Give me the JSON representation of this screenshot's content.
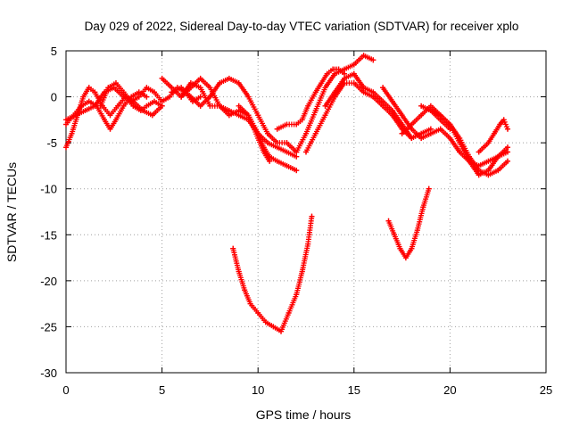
{
  "chart_data": {
    "type": "scatter",
    "title": "Day 029 of 2022, Sidereal Day-to-day VTEC variation (SDTVAR) for receiver xplo",
    "xlabel": "GPS time / hours",
    "ylabel": "SDTVAR / TECUs",
    "xlim": [
      0,
      25
    ],
    "ylim": [
      -30,
      5
    ],
    "xticks": [
      0,
      5,
      10,
      15,
      20,
      25
    ],
    "yticks": [
      5,
      0,
      -5,
      -10,
      -15,
      -20,
      -25,
      -30
    ],
    "grid": true,
    "marker": "+",
    "color": "#ff0000",
    "series": [
      {
        "name": "track-1",
        "x": [
          0.0,
          0.4,
          0.8,
          1.2,
          1.6,
          2.0,
          2.3,
          2.6,
          3.0,
          3.4,
          3.8,
          4.2
        ],
        "y": [
          -3.0,
          -2.0,
          -1.0,
          -0.5,
          -1.0,
          -2.5,
          -3.5,
          -2.5,
          -1.0,
          0.0,
          0.5,
          0.0
        ]
      },
      {
        "name": "track-2",
        "x": [
          0.0,
          0.3,
          0.6,
          0.9,
          1.2,
          1.5,
          1.9,
          2.3,
          2.7,
          3.1,
          3.5,
          3.9,
          4.2,
          4.6,
          5.0
        ],
        "y": [
          -5.5,
          -4.0,
          -2.0,
          0.0,
          1.0,
          0.5,
          -1.0,
          -2.0,
          -1.0,
          0.0,
          -1.0,
          -1.5,
          -1.0,
          -0.5,
          -1.0
        ]
      },
      {
        "name": "track-3",
        "x": [
          0.0,
          0.5,
          1.0,
          1.5,
          2.0,
          2.5,
          3.0,
          3.5,
          4.0,
          4.5,
          5.0
        ],
        "y": [
          -2.5,
          -2.0,
          -1.5,
          -1.0,
          0.5,
          1.0,
          0.0,
          -0.5,
          -1.5,
          -2.0,
          -1.0
        ]
      },
      {
        "name": "track-4",
        "x": [
          1.8,
          2.2,
          2.6,
          3.0,
          3.4,
          3.8,
          4.2,
          4.6,
          5.0,
          5.4,
          5.8,
          6.2,
          6.6,
          7.0
        ],
        "y": [
          -1.0,
          1.0,
          1.5,
          0.5,
          -0.5,
          0.0,
          1.0,
          0.5,
          -0.5,
          0.0,
          1.0,
          0.5,
          -0.5,
          0.0
        ]
      },
      {
        "name": "track-5",
        "x": [
          5.0,
          5.5,
          6.0,
          6.5,
          7.0,
          7.5,
          8.0,
          8.5,
          9.0,
          9.5,
          10.0,
          10.5,
          11.0,
          11.5,
          12.0
        ],
        "y": [
          2.0,
          1.0,
          0.0,
          1.5,
          1.0,
          -1.0,
          -1.0,
          -1.5,
          -2.0,
          -2.5,
          -4.0,
          -5.0,
          -5.5,
          -6.0,
          -6.5
        ]
      },
      {
        "name": "track-6",
        "x": [
          5.5,
          6.0,
          6.5,
          7.0,
          7.5,
          8.0,
          8.5,
          9.0,
          9.5,
          10.0,
          10.5,
          11.0,
          11.5,
          12.0
        ],
        "y": [
          0.5,
          1.0,
          0.0,
          -1.0,
          0.0,
          1.5,
          2.0,
          1.5,
          0.0,
          -2.0,
          -4.0,
          -5.0,
          -5.0,
          -6.0
        ]
      },
      {
        "name": "track-7",
        "x": [
          6.0,
          6.5,
          7.0,
          7.5,
          8.0,
          8.5,
          9.0,
          9.5,
          10.0,
          10.3,
          10.6,
          11.0,
          11.5,
          12.0
        ],
        "y": [
          0.0,
          1.0,
          2.0,
          1.0,
          -1.0,
          -2.0,
          -1.5,
          -2.0,
          -4.0,
          -5.5,
          -6.5,
          -7.0,
          -7.5,
          -8.0
        ]
      },
      {
        "name": "track-8",
        "x": [
          9.0,
          9.5,
          10.0,
          10.3,
          10.6
        ],
        "y": [
          -1.0,
          -2.0,
          -4.5,
          -6.0,
          -7.0
        ]
      },
      {
        "name": "track-9",
        "x": [
          11.0,
          11.5,
          12.0,
          12.3,
          12.6,
          13.0,
          13.3,
          13.6,
          13.9,
          14.2,
          14.5
        ],
        "y": [
          -3.5,
          -3.0,
          -3.0,
          -2.5,
          -1.0,
          0.5,
          1.5,
          2.5,
          3.0,
          3.0,
          2.5
        ]
      },
      {
        "name": "track-10",
        "x": [
          12.0,
          12.5,
          13.0,
          13.5,
          14.0,
          14.5,
          15.0,
          15.5,
          16.0
        ],
        "y": [
          -6.0,
          -4.0,
          -1.5,
          1.0,
          2.5,
          3.0,
          3.5,
          4.5,
          4.0
        ]
      },
      {
        "name": "track-11",
        "x": [
          12.5,
          13.0,
          13.5,
          14.0,
          14.5,
          15.0,
          15.5,
          16.0,
          16.5,
          17.0,
          17.5,
          18.0
        ],
        "y": [
          -6.0,
          -4.0,
          -2.0,
          0.0,
          1.5,
          1.5,
          0.5,
          0.0,
          -1.0,
          -2.0,
          -3.5,
          -4.5
        ]
      },
      {
        "name": "track-12",
        "x": [
          13.5,
          14.0,
          14.5,
          15.0,
          15.5,
          16.0,
          16.5,
          17.0,
          17.5,
          18.0,
          18.5,
          19.0
        ],
        "y": [
          -1.0,
          0.5,
          2.0,
          2.5,
          1.0,
          0.5,
          -0.5,
          -1.5,
          -3.0,
          -4.5,
          -4.0,
          -3.5
        ]
      },
      {
        "name": "track-13",
        "x": [
          16.5,
          17.0,
          17.5,
          18.0,
          18.5,
          19.0,
          19.5,
          20.0,
          20.5,
          21.0,
          21.5,
          22.0,
          22.5,
          23.0
        ],
        "y": [
          1.0,
          -0.5,
          -2.0,
          -3.5,
          -4.5,
          -4.0,
          -3.5,
          -4.5,
          -6.0,
          -7.0,
          -7.5,
          -7.0,
          -6.5,
          -6.0
        ]
      },
      {
        "name": "track-14",
        "x": [
          17.5,
          18.0,
          18.5,
          19.0,
          19.5,
          20.0,
          20.5,
          21.0,
          21.5,
          22.0,
          22.5,
          23.0
        ],
        "y": [
          -4.0,
          -3.0,
          -2.0,
          -1.0,
          -2.0,
          -3.0,
          -4.5,
          -6.5,
          -8.0,
          -8.5,
          -8.0,
          -7.0
        ]
      },
      {
        "name": "track-15",
        "x": [
          18.5,
          19.0,
          19.5,
          20.0,
          20.5,
          21.0,
          21.5,
          22.0,
          22.5,
          23.0
        ],
        "y": [
          -1.0,
          -1.5,
          -2.0,
          -3.0,
          -5.0,
          -7.0,
          -8.5,
          -8.0,
          -6.5,
          -5.5
        ]
      },
      {
        "name": "track-16",
        "x": [
          19.0,
          19.5,
          20.0
        ],
        "y": [
          -1.5,
          -2.5,
          -3.5
        ]
      },
      {
        "name": "track-17",
        "x": [
          21.5,
          22.0,
          22.3,
          22.6,
          22.8,
          23.0
        ],
        "y": [
          -6.0,
          -5.0,
          -4.0,
          -3.0,
          -2.5,
          -3.5
        ]
      },
      {
        "name": "track-18",
        "x": [
          8.7,
          9.0,
          9.3,
          9.6,
          10.0,
          10.4,
          10.8,
          11.2,
          11.6,
          12.0,
          12.3,
          12.6,
          12.8
        ],
        "y": [
          -16.5,
          -19.0,
          -21.0,
          -22.5,
          -23.5,
          -24.5,
          -25.0,
          -25.5,
          -23.5,
          -21.5,
          -19.0,
          -16.0,
          -13.0
        ]
      },
      {
        "name": "track-19",
        "x": [
          16.8,
          17.1,
          17.4,
          17.7,
          18.0,
          18.3,
          18.6,
          18.9
        ],
        "y": [
          -13.5,
          -15.0,
          -16.5,
          -17.5,
          -16.5,
          -14.5,
          -12.0,
          -10.0
        ]
      }
    ]
  }
}
